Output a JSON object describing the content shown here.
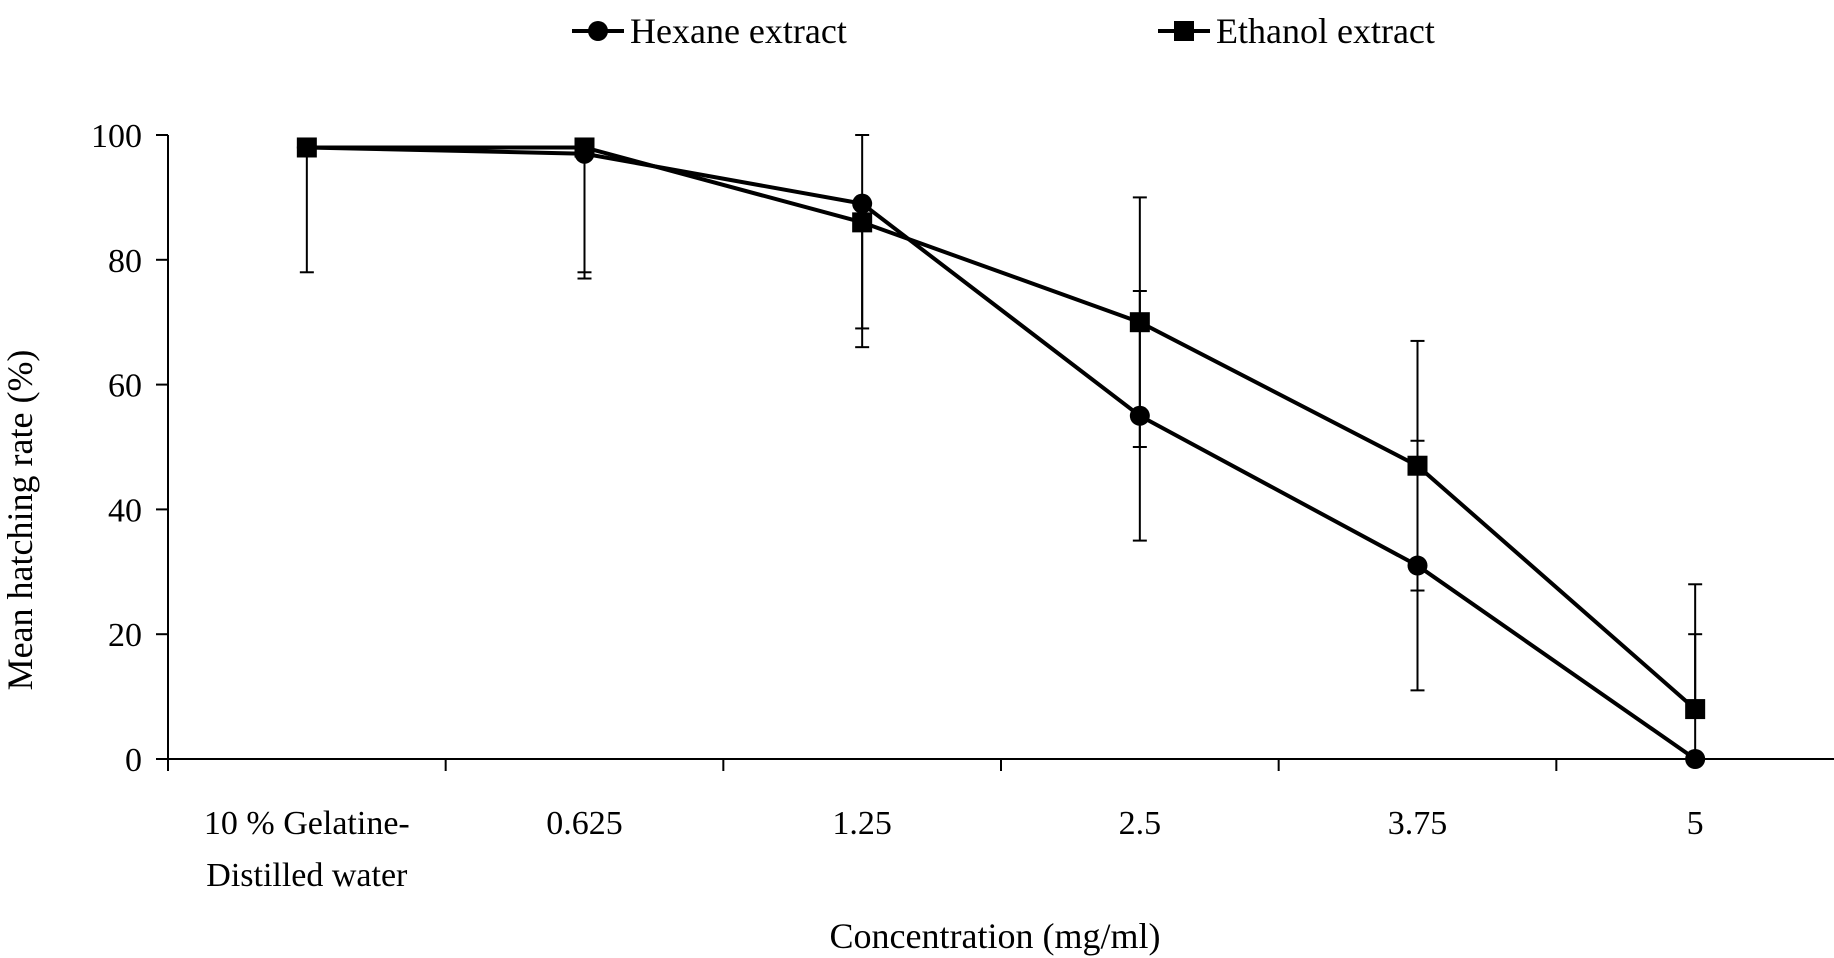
{
  "chart_data": {
    "type": "line",
    "xlabel": "Concentration (mg/ml)",
    "ylabel": "Mean hatching rate (%)",
    "ylim": [
      0,
      100
    ],
    "y_ticks": [
      "0",
      "20",
      "40",
      "60",
      "80",
      "100"
    ],
    "categories": [
      [
        "10 %  Gelatine-",
        "Distilled water"
      ],
      [
        "0.625"
      ],
      [
        "1.25"
      ],
      [
        "2.5"
      ],
      [
        "3.75"
      ],
      [
        "5"
      ]
    ],
    "legend_position": "top",
    "grid": false,
    "series": [
      {
        "name": "Hexane extract",
        "marker": "circle",
        "values": [
          98,
          97,
          89,
          55,
          31,
          0
        ],
        "error_low": [
          78,
          77,
          69,
          35,
          11,
          0
        ],
        "error_high": [
          98,
          97,
          100,
          75,
          51,
          20
        ]
      },
      {
        "name": "Ethanol extract",
        "marker": "square",
        "values": [
          98,
          98,
          86,
          70,
          47,
          8
        ],
        "error_low": [
          98,
          78,
          66,
          50,
          27,
          8
        ],
        "error_high": [
          98,
          98,
          86,
          90,
          67,
          28
        ]
      }
    ],
    "colors": {
      "line": "#000000",
      "marker": "#000000",
      "axis": "#000000"
    }
  }
}
